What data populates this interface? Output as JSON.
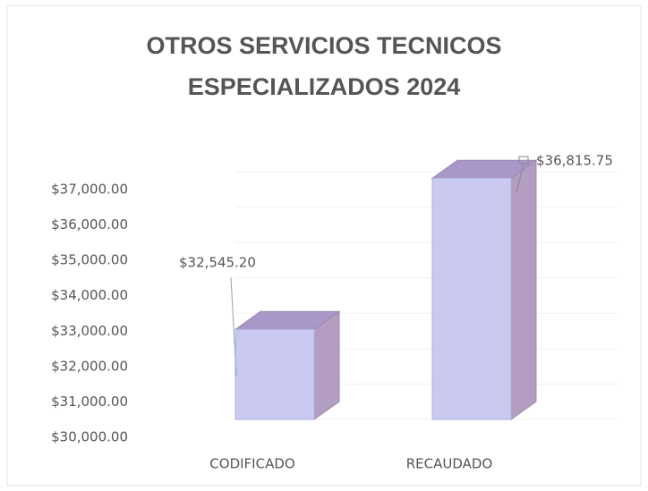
{
  "chart_data": {
    "type": "bar3d",
    "title": "OTROS SERVICIOS TECNICOS ESPECIALIZADOS 2024",
    "categories": [
      "CODIFICADO",
      "RECAUDADO"
    ],
    "values": [
      32545.2,
      36815.75
    ],
    "value_labels": [
      "$32,545.20",
      "$36,815.75"
    ],
    "color": "#c9c9f2",
    "ylim": [
      30000,
      37000
    ],
    "yticks": [
      {
        "value": 30000,
        "label": "$30,000.00"
      },
      {
        "value": 31000,
        "label": "$31,000.00"
      },
      {
        "value": 32000,
        "label": "$32,000.00"
      },
      {
        "value": 33000,
        "label": "$33,000.00"
      },
      {
        "value": 34000,
        "label": "$34,000.00"
      },
      {
        "value": 35000,
        "label": "$35,000.00"
      },
      {
        "value": 36000,
        "label": "$36,000.00"
      },
      {
        "value": 37000,
        "label": "$37,000.00"
      }
    ],
    "grid": true
  }
}
